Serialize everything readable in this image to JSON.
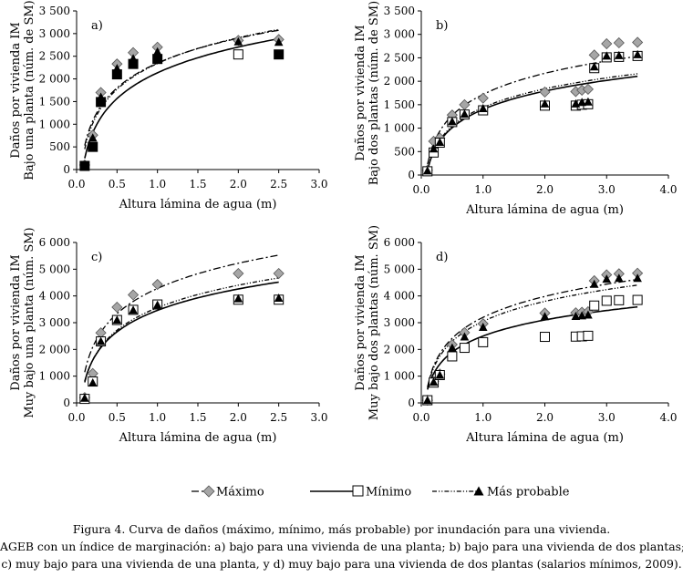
{
  "legend": {
    "max": "Máximo",
    "min": "Mínimo",
    "prob": "Más probable"
  },
  "caption": {
    "line1": "Figura 4. Curva de daños (máximo, mínimo, más probable) por inundación para una vivienda.",
    "line2": "AGEB con un índice de marginación: a) bajo para una vivienda de una planta; b) bajo para una vivienda de dos plantas;",
    "line3": "c) muy bajo para una vivienda de una planta, y d) muy bajo para una vivienda de dos plantas (salarios mínimos, 2009)."
  },
  "colors": {
    "max_marker": "#a6a6a6",
    "min_marker": "#ffffff",
    "prob_marker": "#000000"
  },
  "chart_data": [
    {
      "id": "a",
      "type": "scatter",
      "panel_label": "a)",
      "xlabel": "Altura lámina de agua (m)",
      "ylabel_lines": [
        "Daños por vivienda IM",
        "Bajo una planta (núm. de SM)"
      ],
      "xlim": [
        0,
        3
      ],
      "ylim": [
        0,
        3500
      ],
      "xticks": [
        0,
        0.5,
        1,
        1.5,
        2,
        2.5,
        3
      ],
      "xtick_labels": [
        "0.0",
        "0.5",
        "1.0",
        "1.5",
        "2.0",
        "2.5",
        "3.0"
      ],
      "yticks": [
        0,
        500,
        1000,
        1500,
        2000,
        2500,
        3000,
        3500
      ],
      "ytick_labels": [
        "0",
        "500",
        "1 000",
        "1 500",
        "2 000",
        "2 500",
        "3 000",
        "3 500"
      ],
      "curve_domain": [
        0.1,
        2.5
      ],
      "series": [
        {
          "name": "Máximo",
          "marker": "diamond",
          "line": "dashdot",
          "x": [
            0.1,
            0.2,
            0.3,
            0.5,
            0.7,
            1.0,
            2.0,
            2.5
          ],
          "y": [
            100,
            760,
            1700,
            2330,
            2580,
            2700,
            2850,
            2870
          ],
          "fit": [
            2350,
            790
          ]
        },
        {
          "name": "Mínimo",
          "marker": "square",
          "line": "solid",
          "x": [
            0.1,
            0.2,
            0.3,
            0.5,
            0.7,
            1.0,
            2.0,
            2.5
          ],
          "y": [
            80,
            500,
            1490,
            2100,
            2330,
            2440,
            2540,
            2540
          ],
          "fit": [
            2135,
            820
          ]
        },
        {
          "name": "Más probable",
          "marker": "triangle",
          "line": "dotted",
          "x": [
            0.1,
            0.2,
            0.3,
            0.5,
            0.7,
            1.0,
            2.0,
            2.5
          ],
          "y": [
            90,
            700,
            1600,
            2230,
            2450,
            2600,
            2820,
            2810
          ],
          "fit": [
            2340,
            820
          ]
        }
      ]
    },
    {
      "id": "b",
      "type": "scatter",
      "panel_label": "b)",
      "xlabel": "Altura lámina de agua (m)",
      "ylabel_lines": [
        "Daños por vivienda IM",
        "Bajo dos plantas (núm. de SM)"
      ],
      "xlim": [
        0,
        4
      ],
      "ylim": [
        0,
        3500
      ],
      "xticks": [
        0,
        1,
        2,
        3,
        4
      ],
      "xtick_labels": [
        "0.0",
        "1.0",
        "2.0",
        "3.0",
        "4.0"
      ],
      "yticks": [
        0,
        500,
        1000,
        1500,
        2000,
        2500,
        3000,
        3500
      ],
      "ytick_labels": [
        "0",
        "500",
        "1 000",
        "1 500",
        "2 000",
        "2 500",
        "3 000",
        "3 500"
      ],
      "curve_domain": [
        0.1,
        3.5
      ],
      "series": [
        {
          "name": "Máximo",
          "marker": "diamond",
          "line": "dashdot",
          "x": [
            0.1,
            0.2,
            0.3,
            0.5,
            0.7,
            1.0,
            2.0,
            2.5,
            2.6,
            2.7,
            2.8,
            3.0,
            3.2,
            3.5
          ],
          "y": [
            100,
            720,
            790,
            1280,
            1500,
            1640,
            1770,
            1780,
            1810,
            1830,
            2560,
            2800,
            2820,
            2830
          ],
          "fit": [
            1720,
            648
          ]
        },
        {
          "name": "Mínimo",
          "marker": "square",
          "line": "solid",
          "x": [
            0.1,
            0.2,
            0.3,
            0.5,
            0.7,
            1.0,
            2.0,
            2.5,
            2.6,
            2.7,
            2.8,
            3.0,
            3.2,
            3.5
          ],
          "y": [
            80,
            480,
            690,
            1130,
            1290,
            1380,
            1480,
            1480,
            1500,
            1510,
            2280,
            2510,
            2520,
            2540
          ],
          "fit": [
            1400,
            563
          ]
        },
        {
          "name": "Más probable",
          "marker": "triangle",
          "line": "dotted",
          "x": [
            0.1,
            0.2,
            0.3,
            0.5,
            0.7,
            1.0,
            2.0,
            2.5,
            2.6,
            2.7,
            2.8,
            3.0,
            3.2,
            3.5
          ],
          "y": [
            90,
            560,
            700,
            1140,
            1300,
            1420,
            1520,
            1520,
            1550,
            1560,
            2310,
            2540,
            2550,
            2570
          ],
          "fit": [
            1440,
            575
          ]
        }
      ]
    },
    {
      "id": "c",
      "type": "scatter",
      "panel_label": "c)",
      "xlabel": "Altura lámina de agua (m)",
      "ylabel_lines": [
        "Daños por vivienda IM",
        "Muy bajo una planta (núm. SM)"
      ],
      "xlim": [
        0,
        3
      ],
      "ylim": [
        0,
        6000
      ],
      "xticks": [
        0,
        0.5,
        1,
        1.5,
        2,
        2.5,
        3
      ],
      "xtick_labels": [
        "0.0",
        "0.5",
        "1.0",
        "1.5",
        "2.0",
        "2.5",
        "3.0"
      ],
      "yticks": [
        0,
        1000,
        2000,
        3000,
        4000,
        5000,
        6000
      ],
      "ytick_labels": [
        "0",
        "1 000",
        "2 000",
        "3 000",
        "4 000",
        "5 000",
        "6 000"
      ],
      "curve_domain": [
        0.1,
        2.5
      ],
      "series": [
        {
          "name": "Máximo",
          "marker": "diamond",
          "line": "dashdot",
          "x": [
            0.1,
            0.2,
            0.3,
            0.5,
            0.7,
            1.0,
            2.0,
            2.5
          ],
          "y": [
            200,
            1100,
            2620,
            3580,
            4040,
            4430,
            4840,
            4840
          ],
          "fit": [
            4280,
            1360
          ]
        },
        {
          "name": "Mínimo",
          "marker": "square",
          "line": "solid",
          "x": [
            0.1,
            0.2,
            0.3,
            0.5,
            0.7,
            1.0,
            2.0,
            2.5
          ],
          "y": [
            150,
            800,
            2300,
            3100,
            3480,
            3680,
            3860,
            3860
          ],
          "fit": [
            3460,
            1155
          ]
        },
        {
          "name": "Más probable",
          "marker": "triangle",
          "line": "dotted",
          "x": [
            0.1,
            0.2,
            0.3,
            0.5,
            0.7,
            1.0,
            2.0,
            2.5
          ],
          "y": [
            180,
            750,
            2300,
            3100,
            3470,
            3660,
            3900,
            3920
          ],
          "fit": [
            3560,
            1215
          ]
        }
      ]
    },
    {
      "id": "d",
      "type": "scatter",
      "panel_label": "d)",
      "xlabel": "Altura lámina de agua (m)",
      "ylabel_lines": [
        "Daños por vivienda IM",
        "Muy bajo dos plantas (núm.  SM)"
      ],
      "xlim": [
        0,
        4
      ],
      "ylim": [
        0,
        6000
      ],
      "xticks": [
        0,
        1,
        2,
        3,
        4
      ],
      "xtick_labels": [
        "0.0",
        "1.0",
        "2.0",
        "3.0",
        "4.0"
      ],
      "yticks": [
        0,
        1000,
        2000,
        3000,
        4000,
        5000,
        6000
      ],
      "ytick_labels": [
        "0",
        "1 000",
        "2 000",
        "3 000",
        "4 000",
        "5 000",
        "6 000"
      ],
      "curve_domain": [
        0.1,
        3.5
      ],
      "series": [
        {
          "name": "Máximo",
          "marker": "diamond",
          "line": "dashdot",
          "x": [
            0.1,
            0.2,
            0.3,
            0.5,
            0.7,
            1.0,
            2.0,
            2.5,
            2.6,
            2.7,
            2.8,
            3.0,
            3.2,
            3.5
          ],
          "y": [
            100,
            800,
            1080,
            2180,
            2630,
            2960,
            3360,
            3370,
            3390,
            3410,
            4570,
            4790,
            4830,
            4850
          ],
          "fit": [
            3200,
            1130
          ]
        },
        {
          "name": "Mínimo",
          "marker": "square",
          "line": "solid",
          "x": [
            0.1,
            0.2,
            0.3,
            0.5,
            0.7,
            1.0,
            2.0,
            2.5,
            2.6,
            2.7,
            2.8,
            3.0,
            3.2,
            3.5
          ],
          "y": [
            100,
            760,
            1040,
            1740,
            2060,
            2270,
            2470,
            2480,
            2490,
            2510,
            3640,
            3820,
            3840,
            3850
          ],
          "fit": [
            2500,
            870
          ]
        },
        {
          "name": "Más probable",
          "marker": "triangle",
          "line": "dotted",
          "x": [
            0.1,
            0.2,
            0.3,
            0.5,
            0.7,
            1.0,
            2.0,
            2.5,
            2.6,
            2.7,
            2.8,
            3.0,
            3.2,
            3.5
          ],
          "y": [
            100,
            780,
            1040,
            2060,
            2470,
            2830,
            3230,
            3240,
            3260,
            3290,
            4440,
            4630,
            4660,
            4660
          ],
          "fit": [
            3050,
            1080
          ]
        }
      ]
    }
  ]
}
